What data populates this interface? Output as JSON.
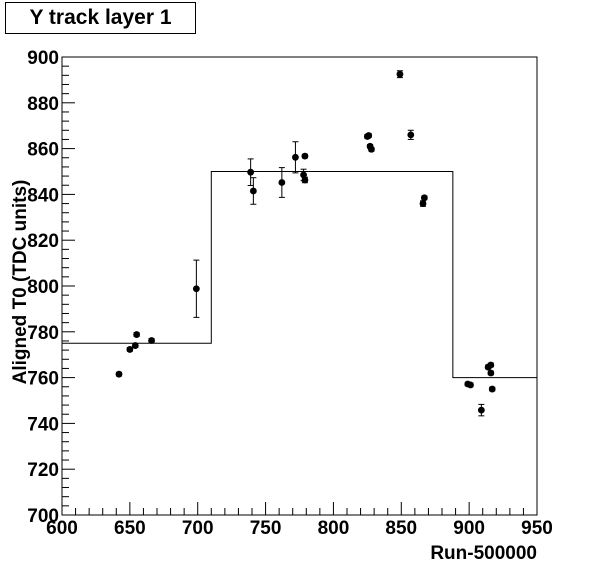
{
  "chart_data": {
    "type": "scatter",
    "title": "Y track layer 1",
    "xlabel": "Run-500000",
    "ylabel": "Aligned T0 (TDC units)",
    "xlim": [
      600,
      950
    ],
    "ylim": [
      700,
      900
    ],
    "x_ticks": [
      600,
      650,
      700,
      750,
      800,
      850,
      900,
      950
    ],
    "y_ticks": [
      700,
      720,
      740,
      760,
      780,
      800,
      820,
      840,
      860,
      880,
      900
    ],
    "x_tick_labels": [
      "600",
      "650",
      "700",
      "750",
      "800",
      "850",
      "900",
      "950"
    ],
    "y_tick_labels": [
      "700",
      "720",
      "740",
      "760",
      "780",
      "800",
      "820",
      "840",
      "860",
      "880",
      "900"
    ],
    "grid": false,
    "legend": "none",
    "colors": {
      "points": "#000000",
      "step": "#000000",
      "frame": "#000000"
    },
    "points": [
      {
        "x": 642,
        "y": 761.5,
        "err": 0.8
      },
      {
        "x": 650,
        "y": 772.3,
        "err": 0.8
      },
      {
        "x": 654,
        "y": 774.0,
        "err": 0.8
      },
      {
        "x": 655,
        "y": 778.8,
        "err": 0.8
      },
      {
        "x": 666,
        "y": 776.2,
        "err": 0.8
      },
      {
        "x": 699,
        "y": 798.8,
        "err": 12.5
      },
      {
        "x": 739,
        "y": 849.7,
        "err": 5.8
      },
      {
        "x": 741,
        "y": 841.5,
        "err": 5.8
      },
      {
        "x": 762,
        "y": 845.2,
        "err": 6.5
      },
      {
        "x": 772,
        "y": 856.2,
        "err": 6.8
      },
      {
        "x": 778,
        "y": 848.5,
        "err": 2.5
      },
      {
        "x": 779,
        "y": 846.3,
        "err": 1.2
      },
      {
        "x": 779,
        "y": 856.7,
        "err": 0.8
      },
      {
        "x": 825,
        "y": 865.3,
        "err": 0.8
      },
      {
        "x": 826,
        "y": 865.7,
        "err": 0.8
      },
      {
        "x": 827,
        "y": 861.0,
        "err": 0.8
      },
      {
        "x": 828,
        "y": 859.7,
        "err": 0.8
      },
      {
        "x": 849,
        "y": 892.5,
        "err": 1.5
      },
      {
        "x": 857,
        "y": 866.0,
        "err": 2.0
      },
      {
        "x": 866,
        "y": 836.0,
        "err": 1.2
      },
      {
        "x": 867,
        "y": 838.5,
        "err": 0.8
      },
      {
        "x": 899,
        "y": 757.2,
        "err": 0.8
      },
      {
        "x": 901,
        "y": 756.8,
        "err": 0.8
      },
      {
        "x": 909,
        "y": 745.8,
        "err": 2.5
      },
      {
        "x": 914,
        "y": 764.6,
        "err": 0.8
      },
      {
        "x": 916,
        "y": 765.5,
        "err": 0.8
      },
      {
        "x": 916,
        "y": 762.0,
        "err": 0.8
      },
      {
        "x": 917,
        "y": 755.0,
        "err": 0.8
      }
    ],
    "step_line": [
      {
        "x_from": 600,
        "x_to": 710,
        "y": 775
      },
      {
        "x_from": 710,
        "x_to": 888,
        "y": 850
      },
      {
        "x_from": 888,
        "x_to": 950,
        "y": 760
      }
    ]
  }
}
